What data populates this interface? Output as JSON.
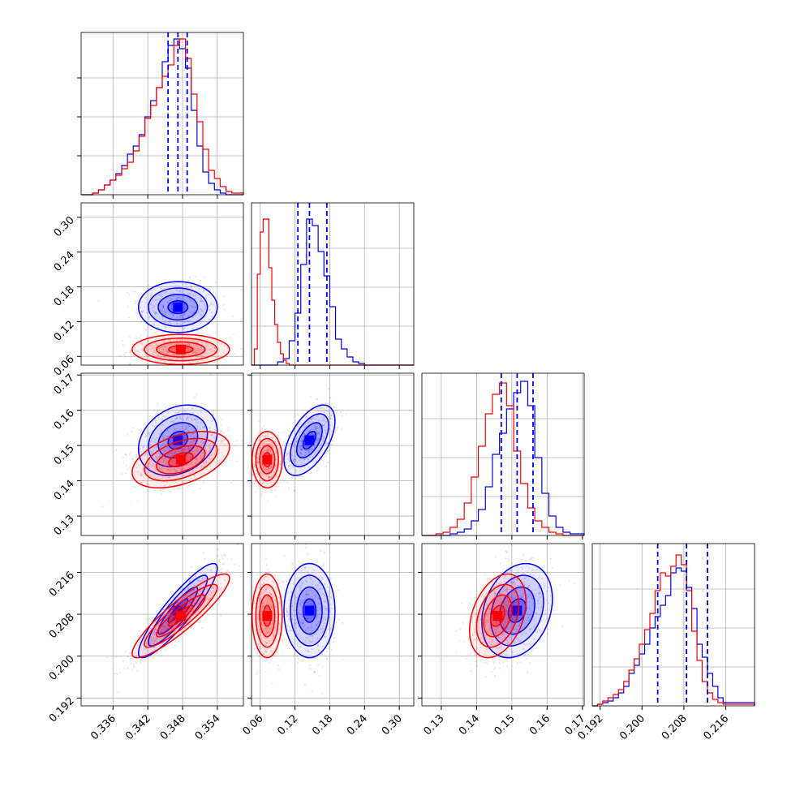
{
  "colors": {
    "model_a": "#0000ff",
    "model_b": "#ff0000",
    "grid": "#b0b0b0"
  },
  "chart_data": {
    "type": "corner",
    "parameters": [
      {
        "ticks": [
          0.336,
          0.342,
          0.348,
          0.354
        ],
        "tick_labels": [
          "0.336",
          "0.342",
          "0.348",
          "0.354"
        ],
        "range": [
          0.3305,
          0.3585
        ]
      },
      {
        "ticks": [
          0.06,
          0.12,
          0.18,
          0.24,
          0.3
        ],
        "tick_labels": [
          "0.06",
          "0.12",
          "0.18",
          "0.24",
          "0.30"
        ],
        "range": [
          0.045,
          0.325
        ]
      },
      {
        "ticks": [
          0.13,
          0.14,
          0.15,
          0.16,
          0.17
        ],
        "tick_labels": [
          "0.13",
          "0.14",
          "0.15",
          "0.16",
          "0.17"
        ],
        "range": [
          0.1245,
          0.1705
        ]
      },
      {
        "ticks": [
          0.192,
          0.2,
          0.208,
          0.216
        ],
        "tick_labels": [
          "0.192",
          "0.200",
          "0.208",
          "0.216"
        ],
        "range": [
          0.1905,
          0.2215
        ]
      }
    ],
    "series": [
      {
        "color": "#0000ff",
        "means": [
          0.3472,
          0.145,
          0.1515,
          0.2087
        ],
        "sigmas": [
          0.0034,
          0.022,
          0.005,
          0.0045
        ],
        "correlations": {
          "1,0": 0.0,
          "2,0": 0.25,
          "2,1": 0.55,
          "3,0": 0.9,
          "3,1": 0.0,
          "3,2": 0.25
        },
        "quantiles": [
          [
            0.3455,
            0.3472,
            0.3488
          ],
          [
            0.125,
            0.145,
            0.175
          ],
          [
            0.147,
            0.1515,
            0.156
          ],
          [
            0.203,
            0.2085,
            0.2125
          ]
        ],
        "histograms": [
          {
            "edges": [
              0.3305,
              0.3325,
              0.3335,
              0.3345,
              0.3355,
              0.3365,
              0.3375,
              0.3385,
              0.3395,
              0.3405,
              0.3415,
              0.3425,
              0.3435,
              0.3445,
              0.3455,
              0.3465,
              0.3475,
              0.3485,
              0.3495,
              0.3505,
              0.3515,
              0.3525,
              0.3535,
              0.3545,
              0.3555,
              0.3585
            ],
            "counts": [
              0.0,
              0.01,
              0.03,
              0.06,
              0.09,
              0.13,
              0.18,
              0.25,
              0.3,
              0.37,
              0.48,
              0.58,
              0.66,
              0.82,
              0.92,
              0.96,
              0.9,
              0.78,
              0.52,
              0.3,
              0.14,
              0.07,
              0.03,
              0.01,
              0.0
            ]
          },
          {
            "edges": [
              0.045,
              0.06,
              0.07,
              0.08,
              0.09,
              0.1,
              0.11,
              0.12,
              0.13,
              0.14,
              0.15,
              0.16,
              0.17,
              0.18,
              0.19,
              0.2,
              0.21,
              0.22,
              0.23,
              0.24,
              0.25,
              0.325
            ],
            "counts": [
              0.0,
              0.0,
              0.0,
              0.0,
              0.02,
              0.04,
              0.15,
              0.32,
              0.62,
              0.9,
              0.86,
              0.7,
              0.55,
              0.36,
              0.16,
              0.1,
              0.05,
              0.02,
              0.01,
              0.0,
              0.0
            ]
          },
          {
            "edges": [
              0.1245,
              0.1325,
              0.1345,
              0.1365,
              0.1385,
              0.1405,
              0.1425,
              0.1445,
              0.1465,
              0.1485,
              0.1505,
              0.1525,
              0.1545,
              0.1565,
              0.1585,
              0.1605,
              0.1625,
              0.1645,
              0.1665,
              0.1705
            ],
            "counts": [
              0.0,
              0.01,
              0.02,
              0.04,
              0.09,
              0.16,
              0.3,
              0.5,
              0.63,
              0.78,
              0.88,
              0.95,
              0.8,
              0.48,
              0.26,
              0.12,
              0.05,
              0.02,
              0.01
            ]
          },
          {
            "edges": [
              0.1905,
              0.1915,
              0.1925,
              0.1935,
              0.1945,
              0.1955,
              0.1965,
              0.1975,
              0.1985,
              0.1995,
              0.2005,
              0.2015,
              0.2025,
              0.2035,
              0.2045,
              0.2055,
              0.2065,
              0.2075,
              0.2085,
              0.2095,
              0.2105,
              0.2115,
              0.2125,
              0.2135,
              0.2145,
              0.2155,
              0.2215
            ],
            "counts": [
              0.0,
              0.01,
              0.02,
              0.03,
              0.05,
              0.08,
              0.12,
              0.2,
              0.25,
              0.32,
              0.38,
              0.48,
              0.55,
              0.62,
              0.68,
              0.82,
              0.85,
              0.83,
              0.73,
              0.6,
              0.38,
              0.3,
              0.2,
              0.12,
              0.05,
              0.02
            ]
          }
        ]
      },
      {
        "color": "#ff0000",
        "means": [
          0.3477,
          0.072,
          0.146,
          0.2077
        ],
        "sigmas": [
          0.0042,
          0.013,
          0.004,
          0.004
        ],
        "correlations": {
          "1,0": 0.0,
          "2,0": 0.45,
          "2,1": 0.0,
          "3,0": 0.9,
          "3,1": 0.0,
          "3,2": 0.35
        },
        "histograms": [
          {
            "edges": [
              0.3305,
              0.3325,
              0.3335,
              0.3345,
              0.3355,
              0.3365,
              0.3375,
              0.3385,
              0.3395,
              0.3405,
              0.3415,
              0.3425,
              0.3435,
              0.3445,
              0.3455,
              0.3465,
              0.3475,
              0.3485,
              0.3495,
              0.3505,
              0.3515,
              0.3525,
              0.3535,
              0.3545,
              0.3555,
              0.3565,
              0.3585
            ],
            "counts": [
              0.0,
              0.01,
              0.03,
              0.06,
              0.09,
              0.12,
              0.16,
              0.2,
              0.27,
              0.36,
              0.47,
              0.55,
              0.66,
              0.73,
              0.8,
              0.92,
              0.96,
              0.84,
              0.62,
              0.45,
              0.28,
              0.15,
              0.1,
              0.05,
              0.02,
              0.01
            ]
          },
          {
            "edges": [
              0.045,
              0.05,
              0.055,
              0.06,
              0.065,
              0.07,
              0.075,
              0.08,
              0.085,
              0.09,
              0.095,
              0.1,
              0.105,
              0.11,
              0.115,
              0.325
            ],
            "counts": [
              0.0,
              0.1,
              0.56,
              0.82,
              0.9,
              0.9,
              0.6,
              0.4,
              0.25,
              0.14,
              0.07,
              0.03,
              0.01,
              0.0,
              0.0
            ]
          },
          {
            "edges": [
              0.1245,
              0.1285,
              0.1305,
              0.1325,
              0.1345,
              0.1365,
              0.1385,
              0.1405,
              0.1425,
              0.1445,
              0.1465,
              0.1485,
              0.1505,
              0.1525,
              0.1545,
              0.1565,
              0.1585,
              0.1605,
              0.1625,
              0.1645,
              0.1705
            ],
            "counts": [
              0.0,
              0.01,
              0.02,
              0.05,
              0.1,
              0.2,
              0.36,
              0.55,
              0.75,
              0.87,
              0.94,
              0.8,
              0.52,
              0.32,
              0.17,
              0.09,
              0.05,
              0.02,
              0.01,
              0.0
            ]
          },
          {
            "edges": [
              0.1905,
              0.1915,
              0.1925,
              0.1935,
              0.1945,
              0.1955,
              0.1965,
              0.1975,
              0.1985,
              0.1995,
              0.2005,
              0.2015,
              0.2025,
              0.2035,
              0.2045,
              0.2055,
              0.2065,
              0.2075,
              0.2085,
              0.2095,
              0.2105,
              0.2115,
              0.2125,
              0.2135,
              0.2145,
              0.2155,
              0.2215
            ],
            "counts": [
              0.0,
              0.01,
              0.03,
              0.05,
              0.07,
              0.1,
              0.15,
              0.22,
              0.29,
              0.38,
              0.47,
              0.57,
              0.71,
              0.82,
              0.8,
              0.86,
              0.93,
              0.87,
              0.71,
              0.46,
              0.28,
              0.15,
              0.08,
              0.04,
              0.02,
              0.01
            ]
          }
        ]
      }
    ],
    "grid": true,
    "contour_levels_sigma": [
      0.5,
      1.0,
      1.5,
      2.0
    ]
  }
}
